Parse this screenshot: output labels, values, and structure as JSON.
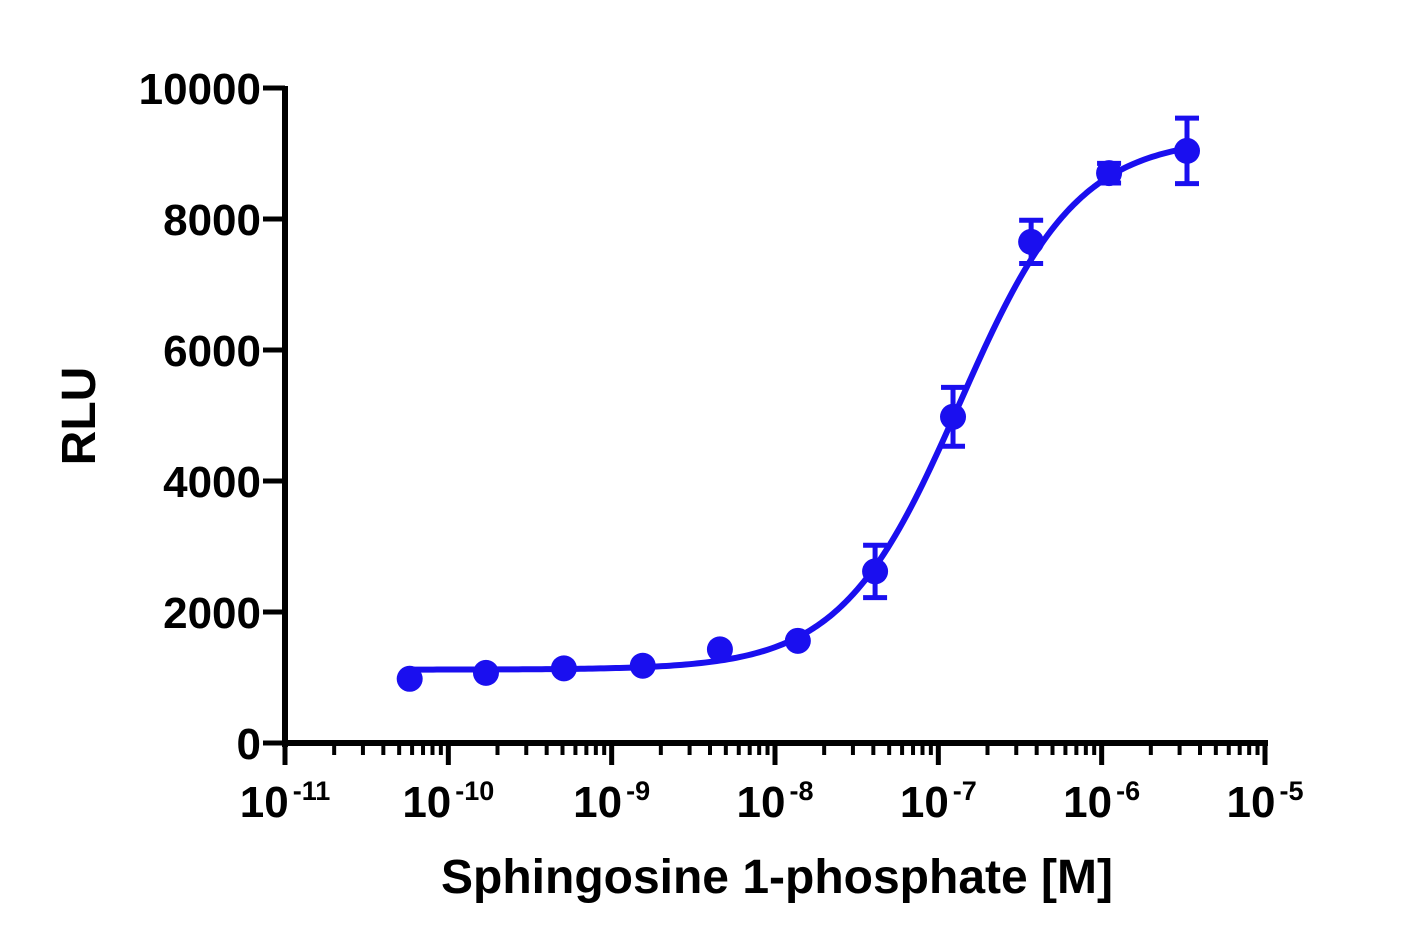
{
  "chart_data": {
    "type": "scatter",
    "title": "",
    "xlabel": "Sphingosine 1-phosphate [M]",
    "ylabel": "RLU",
    "x_scale": "log",
    "xlim": [
      1e-11,
      1e-05
    ],
    "ylim": [
      0,
      10000
    ],
    "y_ticks": [
      {
        "value": 0,
        "label": "0"
      },
      {
        "value": 2000,
        "label": "2000"
      },
      {
        "value": 4000,
        "label": "4000"
      },
      {
        "value": 6000,
        "label": "6000"
      },
      {
        "value": 8000,
        "label": "8000"
      },
      {
        "value": 10000,
        "label": "10000"
      }
    ],
    "x_ticks": [
      {
        "value": 1e-11,
        "base": "10",
        "exp": "-11"
      },
      {
        "value": 1e-10,
        "base": "10",
        "exp": "-10"
      },
      {
        "value": 1e-09,
        "base": "10",
        "exp": "-9"
      },
      {
        "value": 1e-08,
        "base": "10",
        "exp": "-8"
      },
      {
        "value": 1e-07,
        "base": "10",
        "exp": "-7"
      },
      {
        "value": 1e-06,
        "base": "10",
        "exp": "-6"
      },
      {
        "value": 1e-05,
        "base": "10",
        "exp": "-5"
      }
    ],
    "grid": false,
    "series_color": "#1a0fef",
    "points": [
      {
        "x": 5.8e-11,
        "y": 980,
        "err": 0
      },
      {
        "x": 1.7e-10,
        "y": 1070,
        "err": 0
      },
      {
        "x": 5.1e-10,
        "y": 1140,
        "err": 0
      },
      {
        "x": 1.55e-09,
        "y": 1180,
        "err": 0
      },
      {
        "x": 4.6e-09,
        "y": 1430,
        "err": 0
      },
      {
        "x": 1.38e-08,
        "y": 1560,
        "err": 0
      },
      {
        "x": 4.1e-08,
        "y": 2620,
        "err": 400
      },
      {
        "x": 1.23e-07,
        "y": 4980,
        "err": 450
      },
      {
        "x": 3.7e-07,
        "y": 7650,
        "err": 330
      },
      {
        "x": 1.11e-06,
        "y": 8700,
        "err": 150
      },
      {
        "x": 3.33e-06,
        "y": 9040,
        "err": 500
      }
    ],
    "fit": {
      "model": "4PL",
      "bottom": 1120,
      "top": 9250,
      "ec50": 1.35e-07,
      "hill": 1.2,
      "x_range": [
        5.8e-11,
        3.33e-06
      ]
    }
  }
}
